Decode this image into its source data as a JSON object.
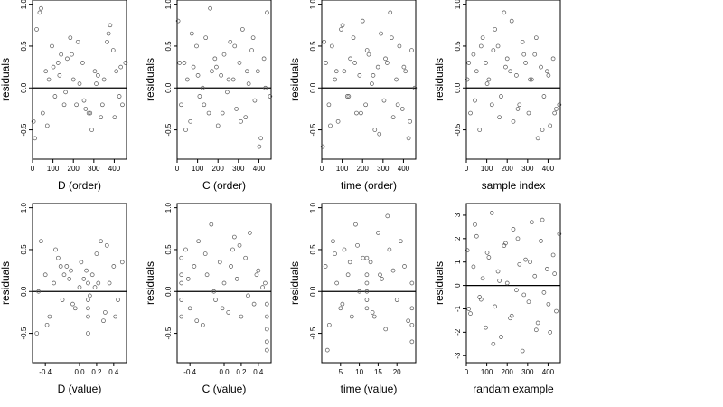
{
  "chart_data": [
    {
      "type": "scatter",
      "title": "",
      "xlabel": "D (order)",
      "ylabel": "residuals",
      "xlim": [
        0,
        460
      ],
      "ylim": [
        -0.85,
        1.05
      ],
      "xticks": [
        0,
        100,
        200,
        300,
        400
      ],
      "xtick_labels": [
        "0",
        "100",
        "200",
        "300",
        "400"
      ],
      "yticks": [
        -0.5,
        0.0,
        0.5,
        1.0
      ],
      "ytick_labels": [
        "-0.5",
        "0.0",
        "0.5",
        "1.0"
      ],
      "reference_line": 0,
      "grid": false,
      "x": [
        5,
        20,
        35,
        50,
        65,
        80,
        95,
        110,
        125,
        140,
        155,
        170,
        185,
        200,
        215,
        230,
        245,
        260,
        275,
        290,
        305,
        320,
        335,
        350,
        365,
        380,
        395,
        410,
        425,
        440,
        455,
        12,
        42,
        72,
        102,
        132,
        162,
        192,
        222,
        252,
        282,
        312,
        342,
        372,
        402,
        432
      ],
      "y": [
        -0.4,
        0.7,
        0.9,
        -0.3,
        0.2,
        0.1,
        0.5,
        -0.1,
        0.3,
        0.4,
        -0.2,
        0.35,
        0.6,
        0.1,
        -0.2,
        0.05,
        0.3,
        -0.25,
        -0.3,
        -0.5,
        0.2,
        0.15,
        -0.35,
        0.1,
        0.55,
        0.75,
        0.45,
        0.2,
        -0.1,
        -0.2,
        0.3,
        -0.6,
        0.95,
        -0.45,
        0.25,
        0.15,
        -0.05,
        0.4,
        0.55,
        -0.15,
        -0.3,
        0.05,
        -0.2,
        0.65,
        -0.35,
        0.25
      ]
    },
    {
      "type": "scatter",
      "title": "",
      "xlabel": "C (order)",
      "ylabel": "residuals",
      "xlim": [
        0,
        460
      ],
      "ylim": [
        -0.85,
        1.05
      ],
      "xticks": [
        0,
        100,
        200,
        300,
        400
      ],
      "xtick_labels": [
        "0",
        "100",
        "200",
        "300",
        "400"
      ],
      "yticks": [
        -0.5,
        0.0,
        0.5,
        1.0
      ],
      "ytick_labels": [
        "-0.5",
        "0.0",
        "0.5",
        "1.0"
      ],
      "reference_line": 0,
      "grid": false,
      "x": [
        5,
        20,
        35,
        50,
        65,
        80,
        95,
        110,
        125,
        140,
        155,
        170,
        185,
        200,
        215,
        230,
        245,
        260,
        275,
        290,
        305,
        320,
        335,
        350,
        365,
        380,
        395,
        410,
        425,
        440,
        455,
        12,
        42,
        72,
        102,
        132,
        162,
        192,
        222,
        252,
        282,
        312,
        342,
        372,
        402,
        432
      ],
      "y": [
        0.8,
        -0.2,
        0.3,
        0.1,
        -0.4,
        0.25,
        0.5,
        -0.1,
        0.0,
        0.6,
        -0.3,
        0.2,
        0.35,
        -0.45,
        0.15,
        0.4,
        -0.05,
        0.55,
        0.1,
        -0.25,
        0.3,
        0.7,
        -0.35,
        0.05,
        0.45,
        -0.15,
        0.2,
        -0.6,
        0.35,
        0.9,
        -0.1,
        0.3,
        -0.5,
        0.65,
        0.15,
        -0.2,
        0.95,
        0.25,
        -0.3,
        0.1,
        0.5,
        -0.4,
        0.2,
        0.6,
        -0.7,
        0.0
      ]
    },
    {
      "type": "scatter",
      "title": "",
      "xlabel": "time (order)",
      "ylabel": "residuals",
      "xlim": [
        0,
        460
      ],
      "ylim": [
        -0.85,
        1.05
      ],
      "xticks": [
        0,
        100,
        200,
        300,
        400
      ],
      "xtick_labels": [
        "0",
        "100",
        "200",
        "300",
        "400"
      ],
      "yticks": [
        -0.5,
        0.0,
        0.5,
        1.0
      ],
      "ytick_labels": [
        "-0.5",
        "0.0",
        "0.5",
        "1.0"
      ],
      "reference_line": 0,
      "grid": false,
      "x": [
        5,
        20,
        35,
        50,
        65,
        80,
        95,
        110,
        125,
        140,
        155,
        170,
        185,
        200,
        215,
        230,
        245,
        260,
        275,
        290,
        305,
        320,
        335,
        350,
        365,
        380,
        395,
        410,
        425,
        440,
        455,
        12,
        42,
        72,
        102,
        132,
        162,
        192,
        222,
        252,
        282,
        312,
        342,
        372,
        402,
        432
      ],
      "y": [
        -0.7,
        0.3,
        -0.2,
        0.5,
        0.1,
        -0.4,
        0.7,
        0.2,
        -0.1,
        0.35,
        0.6,
        -0.3,
        0.15,
        0.8,
        -0.2,
        0.4,
        0.05,
        -0.5,
        0.25,
        0.65,
        -0.15,
        0.3,
        0.9,
        -0.35,
        0.1,
        0.5,
        -0.25,
        0.2,
        -0.6,
        0.45,
        0.0,
        0.55,
        -0.45,
        0.2,
        0.75,
        -0.1,
        0.3,
        -0.3,
        0.45,
        0.15,
        -0.55,
        0.35,
        0.6,
        -0.2,
        0.25,
        -0.4
      ]
    },
    {
      "type": "scatter",
      "title": "",
      "xlabel": "sample index",
      "ylabel": "residuals",
      "xlim": [
        0,
        460
      ],
      "ylim": [
        -0.85,
        1.05
      ],
      "xticks": [
        0,
        100,
        200,
        300,
        400
      ],
      "xtick_labels": [
        "0",
        "100",
        "200",
        "300",
        "400"
      ],
      "yticks": [
        -0.5,
        0.0,
        0.5,
        1.0
      ],
      "ytick_labels": [
        "-0.5",
        "0.0",
        "0.5",
        "1.0"
      ],
      "reference_line": 0,
      "grid": false,
      "x": [
        5,
        20,
        35,
        50,
        65,
        80,
        95,
        110,
        125,
        140,
        155,
        170,
        185,
        200,
        215,
        230,
        245,
        260,
        275,
        290,
        305,
        320,
        335,
        350,
        365,
        380,
        395,
        410,
        425,
        440,
        455,
        12,
        42,
        72,
        102,
        132,
        162,
        192,
        222,
        252,
        282,
        312,
        342,
        372,
        402,
        432
      ],
      "y": [
        0.1,
        -0.3,
        0.4,
        0.2,
        -0.5,
        0.6,
        0.3,
        0.1,
        -0.2,
        0.7,
        0.5,
        -0.1,
        0.9,
        0.35,
        0.2,
        -0.4,
        0.15,
        -0.2,
        0.55,
        0.3,
        -0.3,
        0.1,
        0.4,
        -0.6,
        0.25,
        -0.1,
        0.2,
        -0.45,
        0.35,
        -0.25,
        -0.2,
        0.3,
        -0.15,
        0.5,
        0.05,
        0.45,
        -0.35,
        0.25,
        0.8,
        -0.25,
        0.4,
        0.1,
        0.6,
        -0.5,
        0.15,
        -0.3
      ]
    },
    {
      "type": "scatter",
      "title": "",
      "xlabel": "D (value)",
      "ylabel": "residuals",
      "xlim": [
        -0.55,
        0.55
      ],
      "ylim": [
        -0.85,
        1.05
      ],
      "xticks": [
        -0.4,
        0.0,
        0.2,
        0.4
      ],
      "xtick_labels": [
        "-0.4",
        "0.0",
        "0.2",
        "0.4"
      ],
      "yticks": [
        -0.5,
        0.0,
        0.5,
        1.0
      ],
      "ytick_labels": [
        "-0.5",
        "0.0",
        "0.5",
        "1.0"
      ],
      "reference_line": 0,
      "grid": false,
      "x": [
        -0.5,
        -0.45,
        -0.4,
        -0.35,
        -0.3,
        -0.25,
        -0.2,
        -0.15,
        -0.1,
        -0.05,
        0.0,
        0.05,
        0.1,
        0.1,
        0.1,
        0.1,
        0.1,
        0.15,
        0.2,
        0.25,
        0.3,
        0.35,
        0.4,
        0.45,
        0.5,
        -0.48,
        -0.38,
        -0.28,
        -0.18,
        -0.08,
        0.02,
        0.12,
        0.22,
        0.32,
        0.42,
        -0.12,
        0.08,
        0.18,
        0.28,
        -0.22
      ],
      "y": [
        -0.5,
        0.6,
        0.2,
        -0.3,
        0.1,
        0.4,
        -0.1,
        0.3,
        0.25,
        -0.2,
        0.05,
        0.15,
        -0.3,
        -0.1,
        0.1,
        -0.2,
        -0.5,
        0.2,
        0.45,
        0.6,
        -0.25,
        0.1,
        0.3,
        -0.1,
        0.35,
        0.0,
        -0.4,
        0.5,
        0.2,
        -0.15,
        0.35,
        -0.05,
        0.1,
        0.55,
        -0.3,
        0.15,
        0.25,
        0.05,
        -0.35,
        0.3
      ]
    },
    {
      "type": "scatter",
      "title": "",
      "xlabel": "C (value)",
      "ylabel": "residuals",
      "xlim": [
        -0.55,
        0.55
      ],
      "ylim": [
        -0.85,
        1.05
      ],
      "xticks": [
        -0.4,
        0.0,
        0.2,
        0.4
      ],
      "xtick_labels": [
        "-0.4",
        "0.0",
        "0.2",
        "0.4"
      ],
      "yticks": [
        -0.5,
        0.0,
        0.5,
        1.0
      ],
      "ytick_labels": [
        "-0.5",
        "0.0",
        "0.5",
        "1.0"
      ],
      "reference_line": 0,
      "grid": false,
      "x": [
        -0.5,
        -0.5,
        -0.5,
        -0.5,
        -0.5,
        -0.45,
        -0.4,
        -0.35,
        -0.3,
        -0.25,
        -0.2,
        -0.15,
        -0.1,
        -0.05,
        0.0,
        0.05,
        0.1,
        0.15,
        0.2,
        0.25,
        0.3,
        0.35,
        0.4,
        0.45,
        0.5,
        0.5,
        0.5,
        0.5,
        0.5,
        -0.42,
        -0.32,
        -0.22,
        -0.12,
        -0.02,
        0.08,
        0.18,
        0.28,
        0.38,
        0.48,
        0.12
      ],
      "y": [
        -0.3,
        -0.1,
        0.1,
        0.2,
        0.4,
        0.5,
        -0.2,
        0.3,
        0.6,
        -0.4,
        0.2,
        0.8,
        -0.1,
        0.35,
        0.1,
        -0.25,
        0.5,
        0.15,
        -0.3,
        0.4,
        0.7,
        -0.15,
        0.25,
        0.05,
        -0.6,
        -0.45,
        -0.3,
        -0.15,
        -0.7,
        0.15,
        -0.35,
        0.45,
        0.0,
        -0.2,
        0.3,
        0.55,
        -0.05,
        0.2,
        0.1,
        0.65
      ]
    },
    {
      "type": "scatter",
      "title": "",
      "xlabel": "time (value)",
      "ylabel": "residuals",
      "xlim": [
        0,
        25
      ],
      "ylim": [
        -0.85,
        1.05
      ],
      "xticks": [
        5,
        10,
        15,
        20
      ],
      "xtick_labels": [
        "5",
        "10",
        "15",
        "20"
      ],
      "yticks": [
        -0.5,
        0.0,
        0.5,
        1.0
      ],
      "ytick_labels": [
        "-0.5",
        "0.0",
        "0.5",
        "1.0"
      ],
      "reference_line": 0,
      "grid": false,
      "x": [
        1,
        2,
        3,
        4,
        5,
        6,
        7,
        8,
        9,
        10,
        11,
        12,
        12,
        12,
        12,
        12,
        12,
        13,
        14,
        15,
        16,
        17,
        18,
        19,
        20,
        21,
        22,
        23,
        24,
        24,
        24,
        24,
        1.5,
        3.5,
        5.5,
        7.5,
        9.5,
        13.5,
        15.5,
        17.5
      ],
      "y": [
        0.3,
        -0.4,
        0.6,
        0.1,
        -0.2,
        0.5,
        0.2,
        -0.3,
        0.8,
        0.0,
        0.4,
        -0.2,
        0.0,
        0.2,
        0.4,
        -0.1,
        0.1,
        0.35,
        -0.3,
        0.7,
        0.15,
        -0.45,
        0.5,
        0.25,
        -0.1,
        0.6,
        0.3,
        -0.35,
        -0.6,
        -0.4,
        -0.2,
        0.1,
        -0.7,
        0.45,
        -0.15,
        0.35,
        0.55,
        -0.25,
        0.2,
        0.9
      ]
    },
    {
      "type": "scatter",
      "title": "",
      "xlabel": "randam example",
      "ylabel": "residuals",
      "xlim": [
        0,
        460
      ],
      "ylim": [
        -3.3,
        3.5
      ],
      "xticks": [
        0,
        100,
        200,
        300,
        400
      ],
      "xtick_labels": [
        "0",
        "100",
        "200",
        "300",
        "400"
      ],
      "yticks": [
        -3,
        -2,
        -1,
        0,
        1,
        2,
        3
      ],
      "ytick_labels": [
        "-3",
        "-2",
        "-1",
        "0",
        "1",
        "2",
        "3"
      ],
      "reference_line": 0,
      "grid": false,
      "x": [
        5,
        20,
        35,
        50,
        65,
        80,
        95,
        110,
        125,
        140,
        155,
        170,
        185,
        200,
        215,
        230,
        245,
        260,
        275,
        290,
        305,
        320,
        335,
        350,
        365,
        380,
        395,
        410,
        425,
        440,
        455,
        12,
        42,
        72,
        102,
        132,
        162,
        192,
        222,
        252,
        282,
        312,
        342,
        372,
        402,
        432
      ],
      "y": [
        1.5,
        -1.2,
        0.8,
        2.1,
        -0.5,
        0.3,
        -1.8,
        1.2,
        3.1,
        -0.9,
        0.6,
        -2.2,
        1.7,
        0.1,
        -1.4,
        2.4,
        -0.2,
        0.9,
        -2.8,
        1.1,
        -0.7,
        2.7,
        0.4,
        -1.6,
        1.9,
        -0.3,
        0.7,
        -2.0,
        1.3,
        -1.1,
        2.2,
        -1.0,
        2.6,
        -0.6,
        1.4,
        -2.5,
        0.2,
        1.8,
        -1.3,
        2.0,
        -0.4,
        1.0,
        -1.9,
        2.8,
        -0.8,
        0.5
      ]
    }
  ]
}
